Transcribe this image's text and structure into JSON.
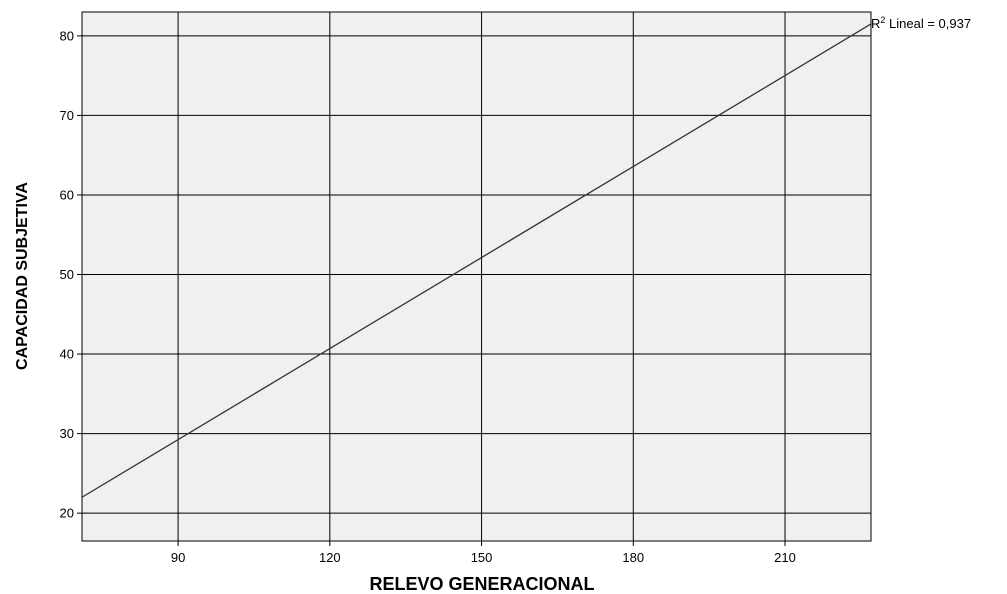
{
  "chart_data": {
    "type": "line",
    "title": "",
    "xlabel": "RELEVO GENERACIONAL",
    "ylabel": "CAPACIDAD SUBJETIVA",
    "xlim": [
      71,
      227
    ],
    "ylim": [
      16.5,
      83
    ],
    "xticks": [
      90,
      120,
      150,
      180,
      210
    ],
    "yticks": [
      20,
      30,
      40,
      50,
      60,
      70,
      80
    ],
    "grid": true,
    "series": [
      {
        "x": [
          71,
          227
        ],
        "y": [
          22.0,
          81.5
        ]
      }
    ],
    "annotation": {
      "prefix": "R",
      "sup": "2",
      "suffix": " Lineal = 0,937"
    },
    "colors": {
      "plot_bg": "#f0f0f0",
      "grid": "#000000",
      "line": "#333333"
    }
  }
}
